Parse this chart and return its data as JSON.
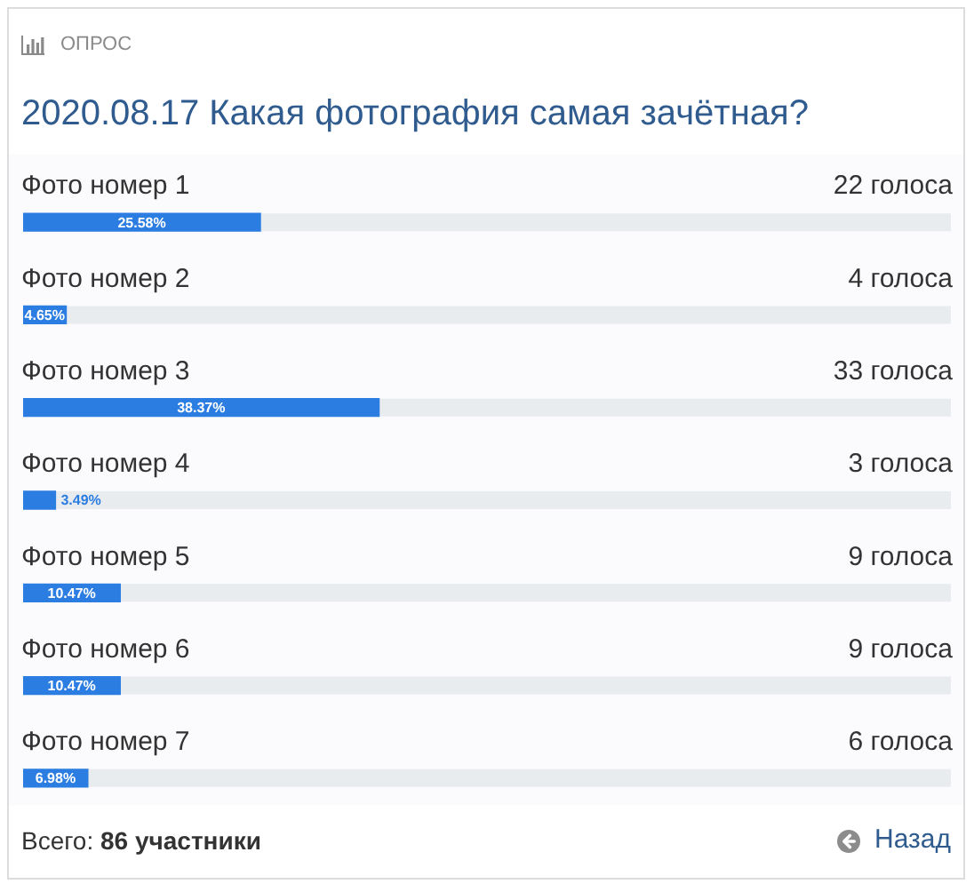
{
  "chart_data": {
    "type": "bar",
    "orientation": "horizontal",
    "title": "2020.08.17 Какая фотография самая зачётная?",
    "categories": [
      "Фото номер 1",
      "Фото номер 2",
      "Фото номер 3",
      "Фото номер 4",
      "Фото номер 5",
      "Фото номер 6",
      "Фото номер 7"
    ],
    "values": [
      25.58,
      4.65,
      38.37,
      3.49,
      10.47,
      10.47,
      6.98
    ],
    "value_labels": [
      "25.58%",
      "4.65%",
      "38.37%",
      "3.49%",
      "10.47%",
      "10.47%",
      "6.98%"
    ],
    "color": "#2b7de1",
    "xlim": [
      0,
      100
    ],
    "tick_labels": "y",
    "annotations": [
      "ОПРОС",
      "22 голоса",
      "4 голоса",
      "33 голоса",
      "3 голоса",
      "9 голоса",
      "9 голоса",
      "6 голоса",
      "Всего: 86 участники",
      "Назад"
    ]
  }
}
